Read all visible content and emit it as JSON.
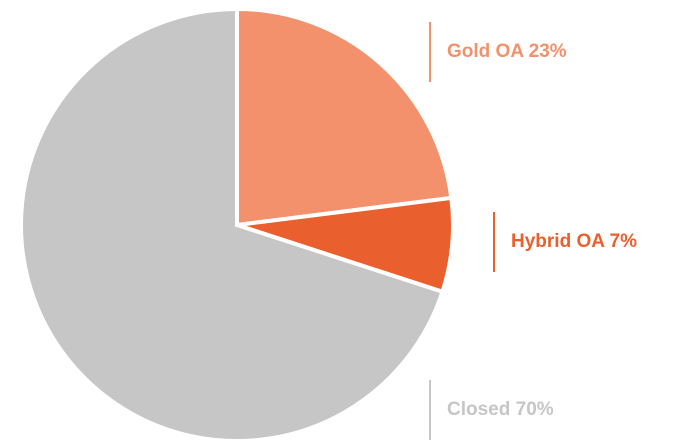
{
  "chart_data": {
    "type": "pie",
    "values": [
      23,
      7,
      70
    ],
    "value_labels": [
      "Gold OA 23%",
      "Hybrid OA 7%",
      "Closed 70%"
    ],
    "colors": [
      "#f2916b",
      "#ea5f2e",
      "#c6c6c6"
    ]
  }
}
